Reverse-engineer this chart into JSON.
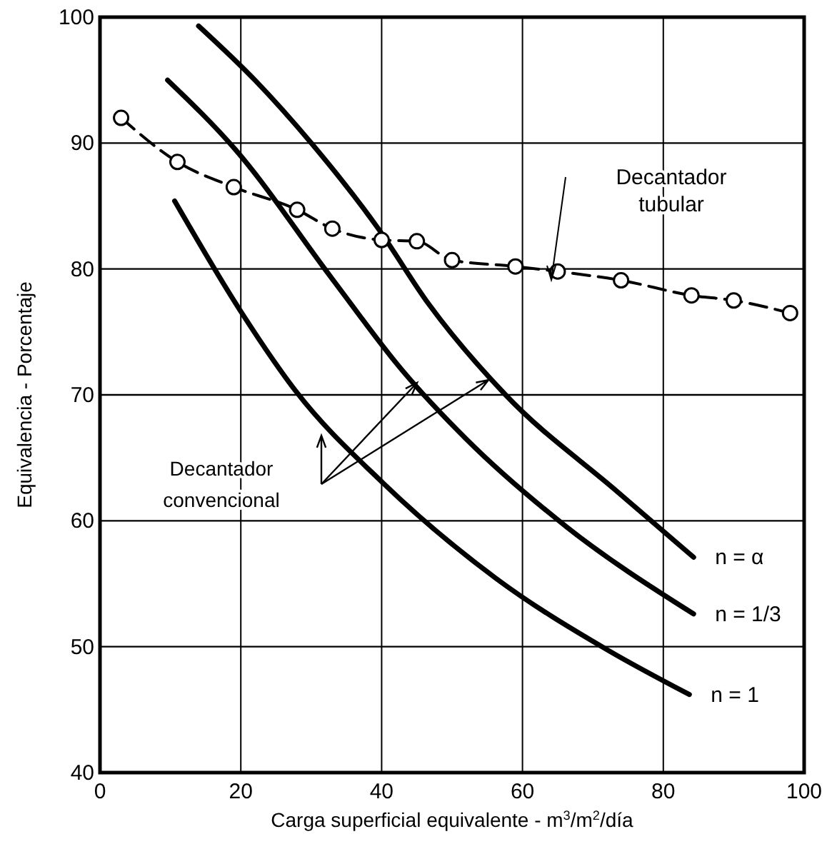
{
  "chart_data": {
    "type": "line",
    "xlabel": "Carga superficial equivalente - m$^{3}$/m$^{2}$/día",
    "ylabel": "Equivalencia - Porcentaje",
    "xlim": [
      0,
      100
    ],
    "ylim": [
      40,
      100
    ],
    "xticks": [
      0,
      20,
      40,
      60,
      80,
      100
    ],
    "yticks": [
      40,
      50,
      60,
      70,
      80,
      90,
      100
    ],
    "grid": true,
    "series": [
      {
        "name": "n = α",
        "color": "#000000",
        "marker": "none",
        "line_style": "solid",
        "x": [
          14,
          22,
          30,
          39.4,
          46.7,
          57.6,
          73.5,
          84.3
        ],
        "values": [
          99.3,
          95,
          90,
          83.3,
          77.2,
          70,
          62.3,
          57.1
        ]
      },
      {
        "name": "n = 1/3",
        "color": "#000000",
        "marker": "none",
        "line_style": "solid",
        "x": [
          9.6,
          19.2,
          33,
          43,
          52,
          66.3,
          84.3
        ],
        "values": [
          95,
          89.5,
          79.2,
          71.9,
          66.5,
          59.5,
          52.6
        ]
      },
      {
        "name": "n = 1",
        "color": "#000000",
        "marker": "none",
        "line_style": "solid",
        "x": [
          10.6,
          19.8,
          27.8,
          40.2,
          56.3,
          72.2,
          83.7
        ],
        "values": [
          85.4,
          76.8,
          70.3,
          63,
          55.4,
          49.7,
          46.2
        ]
      },
      {
        "color": "#000000",
        "marker": "circle",
        "line_style": "dashed",
        "x": [
          3,
          11,
          19,
          28,
          33,
          40,
          45,
          50,
          59,
          65,
          74,
          84,
          90,
          98
        ],
        "values": [
          92,
          88.5,
          86.5,
          84.7,
          83.2,
          82.3,
          82.2,
          80.7,
          80.2,
          79.8,
          79.1,
          77.9,
          77.5,
          76.5
        ]
      }
    ],
    "annotations": [
      "Decantador tubular",
      "Decantador convencional"
    ]
  }
}
